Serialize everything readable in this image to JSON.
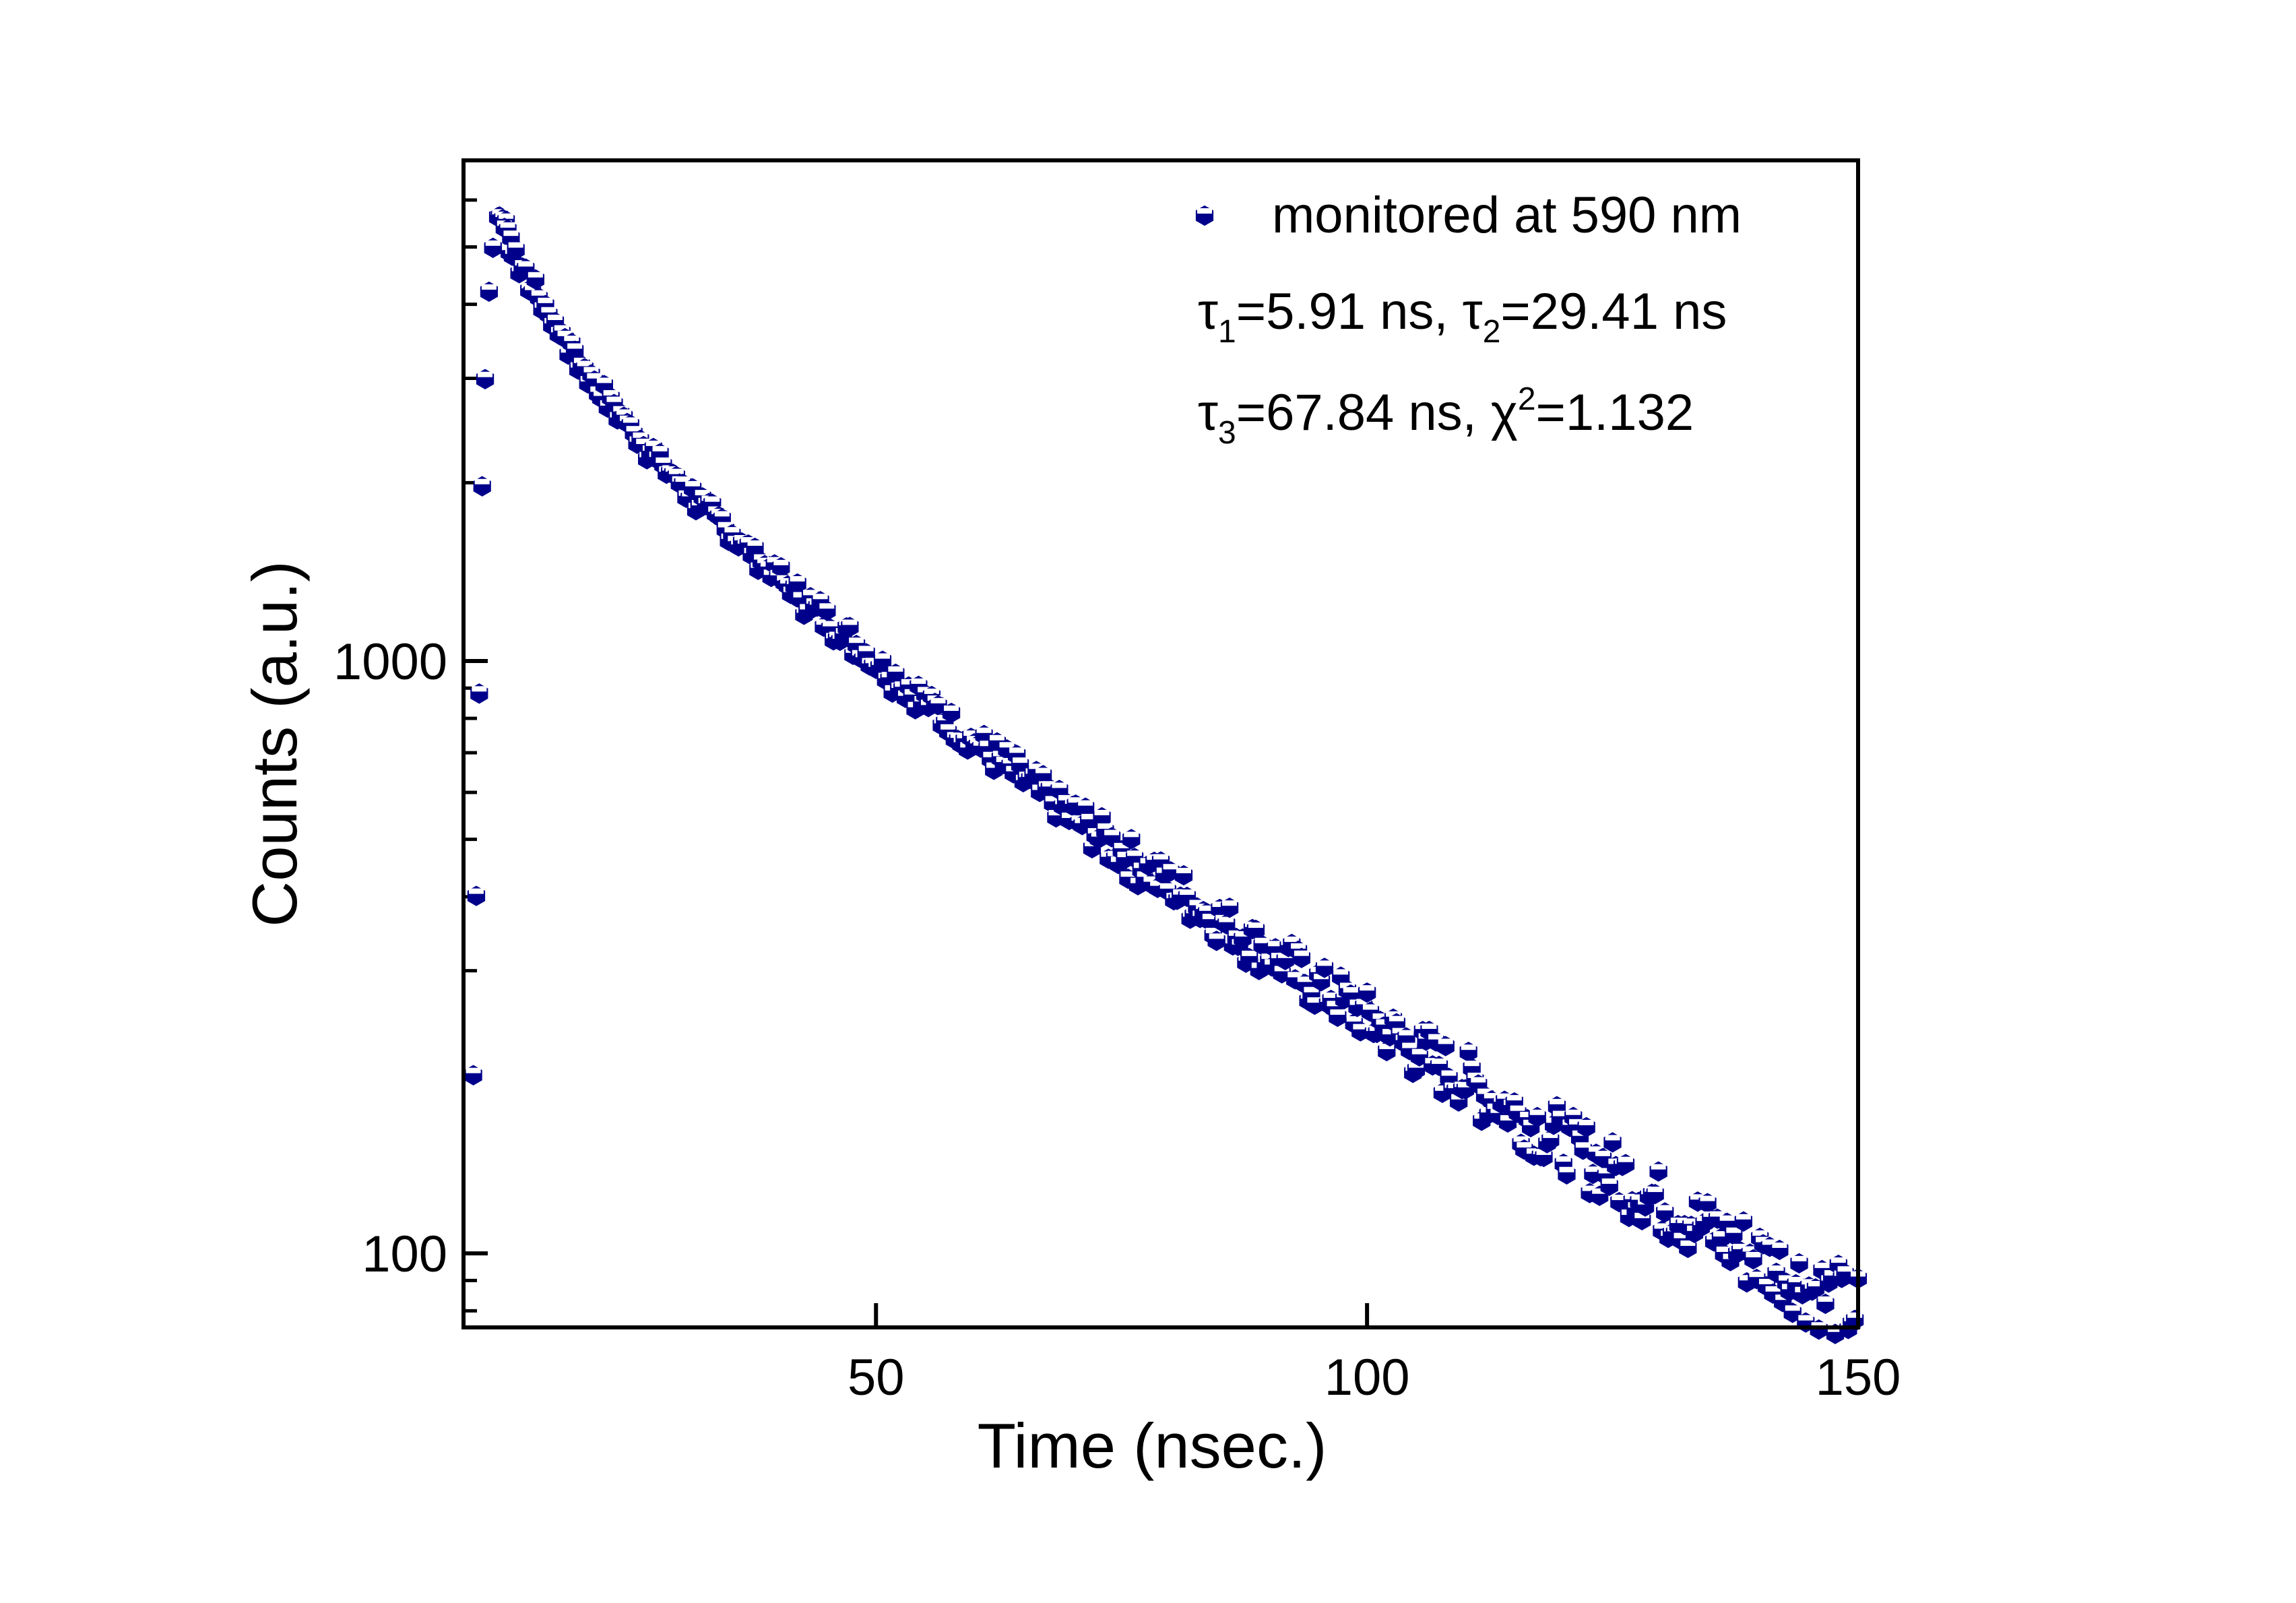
{
  "chart_data": {
    "type": "scatter",
    "xlabel": "Time (nsec.)",
    "ylabel": "Counts (a.u.)",
    "xlim": [
      8,
      150
    ],
    "ylim": [
      75,
      7000
    ],
    "yscale": "log",
    "grid": false,
    "legend_position": "top-right",
    "marker_color": "#00008B",
    "marker_face": "#ffffff",
    "x_ticks": [
      50,
      100,
      150
    ],
    "x_tick_labels": [
      "50",
      "100",
      "150"
    ],
    "y_ticks": [
      100,
      1000
    ],
    "y_tick_labels": [
      "100",
      "1000"
    ],
    "series": [
      {
        "name": "monitored at 590 nm",
        "points": [
          [
            9.0,
            200
          ],
          [
            9.3,
            400
          ],
          [
            9.6,
            900
          ],
          [
            9.9,
            2000
          ],
          [
            10.2,
            3000
          ],
          [
            10.6,
            4200
          ],
          [
            11.0,
            5100
          ],
          [
            11.5,
            5500
          ],
          [
            12.0,
            5600
          ],
          [
            12.5,
            5300
          ],
          [
            13,
            4900
          ],
          [
            14,
            4600
          ],
          [
            15,
            4300
          ],
          [
            16,
            4000
          ],
          [
            17,
            3750
          ],
          [
            18,
            3550
          ],
          [
            19,
            3350
          ],
          [
            20,
            3150
          ],
          [
            21,
            3000
          ],
          [
            22,
            2850
          ],
          [
            23,
            2720
          ],
          [
            24,
            2600
          ],
          [
            25,
            2480
          ],
          [
            26,
            2370
          ],
          [
            27,
            2260
          ],
          [
            28,
            2170
          ],
          [
            29,
            2080
          ],
          [
            30,
            2000
          ],
          [
            31,
            1920
          ],
          [
            32,
            1850
          ],
          [
            33,
            1780
          ],
          [
            34,
            1720
          ],
          [
            35,
            1660
          ],
          [
            36,
            1600
          ],
          [
            37,
            1540
          ],
          [
            38,
            1490
          ],
          [
            39,
            1440
          ],
          [
            40,
            1390
          ],
          [
            41,
            1345
          ],
          [
            42,
            1300
          ],
          [
            43,
            1255
          ],
          [
            44,
            1215
          ],
          [
            45,
            1175
          ],
          [
            46,
            1138
          ],
          [
            47,
            1100
          ],
          [
            48,
            1065
          ],
          [
            49,
            1032
          ],
          [
            50,
            1000
          ],
          [
            51,
            968
          ],
          [
            52,
            938
          ],
          [
            53,
            908
          ],
          [
            54,
            880
          ],
          [
            55,
            853
          ],
          [
            56,
            827
          ],
          [
            57,
            802
          ],
          [
            58,
            778
          ],
          [
            59,
            754
          ],
          [
            60,
            732
          ],
          [
            61,
            710
          ],
          [
            62,
            690
          ],
          [
            63,
            670
          ],
          [
            64,
            650
          ],
          [
            65,
            632
          ],
          [
            66,
            614
          ],
          [
            67,
            597
          ],
          [
            68,
            580
          ],
          [
            69,
            564
          ],
          [
            70,
            548
          ],
          [
            71,
            533
          ],
          [
            72,
            518
          ],
          [
            73,
            504
          ],
          [
            74,
            490
          ],
          [
            75,
            477
          ],
          [
            76,
            464
          ],
          [
            77,
            452
          ],
          [
            78,
            440
          ],
          [
            79,
            428
          ],
          [
            80,
            417
          ],
          [
            81,
            406
          ],
          [
            82,
            395
          ],
          [
            83,
            385
          ],
          [
            84,
            375
          ],
          [
            85,
            365
          ],
          [
            86,
            356
          ],
          [
            87,
            347
          ],
          [
            88,
            338
          ],
          [
            89,
            329
          ],
          [
            90,
            321
          ],
          [
            91,
            313
          ],
          [
            92,
            305
          ],
          [
            93,
            297
          ],
          [
            94,
            290
          ],
          [
            95,
            283
          ],
          [
            96,
            276
          ],
          [
            97,
            269
          ],
          [
            98,
            262
          ],
          [
            99,
            256
          ],
          [
            100,
            250
          ],
          [
            101,
            244
          ],
          [
            102,
            238
          ],
          [
            103,
            232
          ],
          [
            104,
            226
          ],
          [
            105,
            221
          ],
          [
            106,
            216
          ],
          [
            107,
            210
          ],
          [
            108,
            205
          ],
          [
            109,
            200
          ],
          [
            110,
            196
          ],
          [
            111,
            191
          ],
          [
            112,
            186
          ],
          [
            113,
            182
          ],
          [
            114,
            178
          ],
          [
            115,
            173
          ],
          [
            116,
            169
          ],
          [
            117,
            165
          ],
          [
            118,
            161
          ],
          [
            119,
            158
          ],
          [
            120,
            154
          ],
          [
            121,
            150
          ],
          [
            122,
            147
          ],
          [
            123,
            143
          ],
          [
            124,
            140
          ],
          [
            125,
            137
          ],
          [
            126,
            134
          ],
          [
            127,
            131
          ],
          [
            128,
            128
          ],
          [
            129,
            125
          ],
          [
            130,
            122
          ],
          [
            131,
            119
          ],
          [
            132,
            117
          ],
          [
            133,
            114
          ],
          [
            134,
            112
          ],
          [
            135,
            109
          ],
          [
            136,
            107
          ],
          [
            137,
            104
          ],
          [
            138,
            102
          ],
          [
            139,
            100
          ],
          [
            140,
            98
          ],
          [
            141,
            96
          ],
          [
            142,
            94
          ],
          [
            143,
            92
          ],
          [
            144,
            90
          ],
          [
            145,
            88
          ],
          [
            146,
            86
          ],
          [
            147,
            84
          ],
          [
            148,
            83
          ],
          [
            149,
            81
          ],
          [
            150,
            80
          ]
        ]
      }
    ],
    "annotations": [
      {
        "symbol": "τ",
        "sub": "1",
        "text": "=5.91 ns, "
      },
      {
        "symbol": "τ",
        "sub": "2",
        "text": "=29.41 ns"
      },
      {
        "symbol": "τ",
        "sub": "3",
        "text": "=67.84 ns, "
      },
      {
        "symbol": "χ",
        "sup": "2",
        "text": "=1.132"
      }
    ]
  }
}
